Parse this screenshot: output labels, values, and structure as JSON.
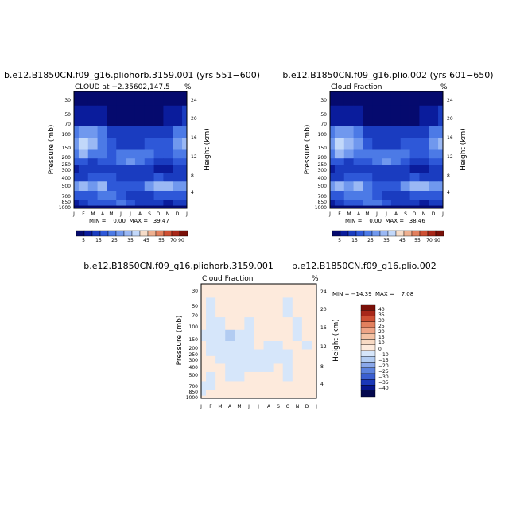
{
  "chart_data": [
    {
      "type": "heatmap",
      "title": "b.e12.B1850CN.f09_g16.pliohorb.3159.001 (yrs 551−600)",
      "subtitle": "CLOUD at −2.35602,147.5",
      "unit": "%",
      "ylabel": "Pressure (mb)",
      "ylabel_right": "Height (km)",
      "x_ticks": [
        "J",
        "F",
        "M",
        "A",
        "M",
        "J",
        "J",
        "A",
        "S",
        "O",
        "N",
        "D",
        "J"
      ],
      "y_ticks": [
        "30",
        "50",
        "70",
        "100",
        "150",
        "200",
        "250",
        "300",
        "400",
        "500",
        "700",
        "850",
        "1000"
      ],
      "y_ticks_right": [
        "24",
        "20",
        "16",
        "12",
        "8",
        "4"
      ],
      "stats": "MIN =    0.00  MAX =   39.47",
      "colorbar_labels": [
        "5",
        "15",
        "25",
        "35",
        "45",
        "55",
        "70",
        "90"
      ],
      "rows_pressure": [
        30,
        70,
        100,
        150,
        200,
        250,
        300,
        400,
        500,
        700,
        850,
        1000
      ],
      "values": [
        [
          1,
          1,
          1,
          1,
          1,
          1,
          1,
          1,
          1,
          1,
          1,
          1,
          1
        ],
        [
          8,
          8,
          8,
          6,
          4,
          4,
          4,
          4,
          4,
          4,
          6,
          8,
          10
        ],
        [
          22,
          28,
          28,
          22,
          14,
          10,
          10,
          10,
          10,
          12,
          14,
          20,
          24
        ],
        [
          28,
          37,
          32,
          24,
          15,
          14,
          12,
          14,
          16,
          16,
          18,
          25,
          30
        ],
        [
          20,
          30,
          24,
          20,
          18,
          20,
          24,
          24,
          20,
          16,
          16,
          20,
          24
        ],
        [
          16,
          16,
          14,
          16,
          18,
          24,
          26,
          22,
          18,
          14,
          14,
          16,
          16
        ],
        [
          8,
          10,
          10,
          12,
          14,
          14,
          14,
          12,
          10,
          8,
          8,
          10,
          10
        ],
        [
          14,
          14,
          18,
          18,
          16,
          14,
          14,
          14,
          14,
          16,
          14,
          14,
          14
        ],
        [
          26,
          30,
          26,
          30,
          18,
          16,
          16,
          18,
          26,
          30,
          30,
          28,
          28
        ],
        [
          18,
          18,
          18,
          20,
          20,
          16,
          14,
          14,
          14,
          16,
          18,
          18,
          18
        ],
        [
          8,
          10,
          16,
          16,
          18,
          20,
          18,
          14,
          12,
          10,
          8,
          10,
          10
        ],
        [
          2,
          2,
          2,
          2,
          2,
          2,
          2,
          2,
          2,
          2,
          2,
          2,
          2
        ]
      ]
    },
    {
      "type": "heatmap",
      "title": "b.e12.B1850CN.f09_g16.plio.002 (yrs 601−650)",
      "subtitle": "Cloud Fraction",
      "unit": "%",
      "ylabel": "Pressure (mb)",
      "ylabel_right": "Height (km)",
      "x_ticks": [
        "J",
        "F",
        "M",
        "A",
        "M",
        "J",
        "J",
        "A",
        "S",
        "O",
        "N",
        "D",
        "J"
      ],
      "y_ticks": [
        "30",
        "50",
        "70",
        "100",
        "150",
        "200",
        "250",
        "300",
        "400",
        "500",
        "700",
        "850",
        "1000"
      ],
      "y_ticks_right": [
        "24",
        "20",
        "16",
        "12",
        "8",
        "4"
      ],
      "stats": "MIN =    0.00  MAX =   38.46",
      "colorbar_labels": [
        "5",
        "15",
        "25",
        "35",
        "45",
        "55",
        "70",
        "90"
      ],
      "rows_pressure": [
        30,
        70,
        100,
        150,
        200,
        250,
        300,
        400,
        500,
        700,
        850,
        1000
      ],
      "values": [
        [
          1,
          1,
          1,
          1,
          1,
          1,
          1,
          1,
          1,
          1,
          1,
          1,
          1
        ],
        [
          8,
          8,
          8,
          6,
          4,
          4,
          4,
          4,
          4,
          4,
          6,
          8,
          10
        ],
        [
          22,
          28,
          28,
          22,
          14,
          10,
          10,
          10,
          10,
          12,
          14,
          20,
          24
        ],
        [
          28,
          36,
          32,
          26,
          16,
          14,
          12,
          14,
          16,
          16,
          18,
          25,
          30
        ],
        [
          22,
          30,
          26,
          22,
          20,
          20,
          24,
          24,
          20,
          16,
          16,
          20,
          24
        ],
        [
          16,
          16,
          14,
          16,
          18,
          24,
          26,
          22,
          18,
          14,
          14,
          16,
          16
        ],
        [
          8,
          10,
          10,
          12,
          14,
          14,
          14,
          12,
          10,
          8,
          8,
          10,
          10
        ],
        [
          14,
          14,
          18,
          18,
          16,
          14,
          14,
          14,
          14,
          16,
          14,
          14,
          14
        ],
        [
          28,
          32,
          28,
          32,
          20,
          16,
          16,
          18,
          26,
          30,
          30,
          28,
          28
        ],
        [
          18,
          18,
          20,
          22,
          24,
          16,
          14,
          14,
          14,
          16,
          18,
          18,
          18
        ],
        [
          8,
          10,
          16,
          16,
          20,
          22,
          18,
          14,
          12,
          10,
          8,
          10,
          10
        ],
        [
          2,
          2,
          2,
          2,
          2,
          2,
          2,
          2,
          2,
          2,
          2,
          2,
          2
        ]
      ]
    },
    {
      "type": "heatmap",
      "title": "b.e12.B1850CN.f09_g16.pliohorb.3159.001  −  b.e12.B1850CN.f09_g16.plio.002",
      "subtitle": "Cloud Fraction",
      "unit": "%",
      "ylabel": "Pressure (mb)",
      "ylabel_right": "Height (km)",
      "x_ticks": [
        "J",
        "F",
        "M",
        "A",
        "M",
        "J",
        "J",
        "A",
        "S",
        "O",
        "N",
        "D",
        "J"
      ],
      "y_ticks": [
        "30",
        "50",
        "70",
        "100",
        "150",
        "200",
        "250",
        "300",
        "400",
        "500",
        "700",
        "850",
        "1000"
      ],
      "y_ticks_right": [
        "24",
        "20",
        "16",
        "12",
        "8",
        "4"
      ],
      "stats": "MIN = −14.39  MAX =    7.08",
      "colorbar_labels": [
        "40",
        "35",
        "30",
        "25",
        "20",
        "15",
        "10",
        "0",
        "−10",
        "−15",
        "−20",
        "−25",
        "−30",
        "−35",
        "−40"
      ],
      "rows_pressure": [
        30,
        70,
        100,
        150,
        200,
        250,
        300,
        400,
        500,
        700,
        850,
        1000
      ],
      "values": [
        [
          5,
          5,
          5,
          5,
          5,
          5,
          5,
          5,
          5,
          5,
          5,
          5,
          5
        ],
        [
          5,
          -5,
          5,
          5,
          5,
          5,
          5,
          5,
          5,
          -5,
          5,
          5,
          5
        ],
        [
          5,
          -5,
          -5,
          5,
          5,
          -5,
          5,
          5,
          5,
          5,
          -5,
          5,
          5
        ],
        [
          -5,
          -5,
          -5,
          -12,
          -5,
          -5,
          5,
          5,
          5,
          5,
          -5,
          5,
          5
        ],
        [
          5,
          -5,
          -5,
          -5,
          -5,
          -5,
          5,
          -5,
          -5,
          5,
          5,
          -5,
          5
        ],
        [
          5,
          -5,
          -5,
          -5,
          -5,
          -5,
          -5,
          -5,
          -5,
          -5,
          5,
          5,
          5
        ],
        [
          5,
          5,
          -5,
          -5,
          -5,
          -5,
          -5,
          -5,
          -5,
          -5,
          5,
          5,
          5
        ],
        [
          5,
          5,
          5,
          -5,
          -5,
          -5,
          -5,
          -5,
          5,
          -5,
          5,
          5,
          5
        ],
        [
          5,
          -5,
          5,
          -5,
          -5,
          5,
          5,
          5,
          5,
          -5,
          5,
          5,
          5
        ],
        [
          -5,
          -5,
          5,
          5,
          5,
          5,
          5,
          5,
          5,
          5,
          5,
          5,
          5
        ],
        [
          -5,
          5,
          5,
          5,
          5,
          5,
          5,
          5,
          5,
          5,
          5,
          5,
          5
        ],
        [
          5,
          5,
          5,
          5,
          5,
          5,
          5,
          5,
          5,
          5,
          5,
          5,
          5
        ]
      ]
    }
  ],
  "colors": {
    "abs_scale": [
      "#050a6e",
      "#0a1c9c",
      "#1a3cc0",
      "#2e58d8",
      "#4c7ae6",
      "#7098ee",
      "#9ab8f4",
      "#c2d8fa",
      "#f6dcc8",
      "#eeb090",
      "#e2805e",
      "#ce5034",
      "#a8281a",
      "#7a1008"
    ],
    "diff_scale": [
      "#7a1008",
      "#a8281a",
      "#ce5034",
      "#e2805e",
      "#eea486",
      "#f4c2a4",
      "#f8dac4",
      "#fdeadc",
      "#d6e6fa",
      "#b2ccf2",
      "#8aa8ea",
      "#5c82de",
      "#3a5ed0",
      "#1a38b8",
      "#06168c",
      "#04084e"
    ]
  }
}
